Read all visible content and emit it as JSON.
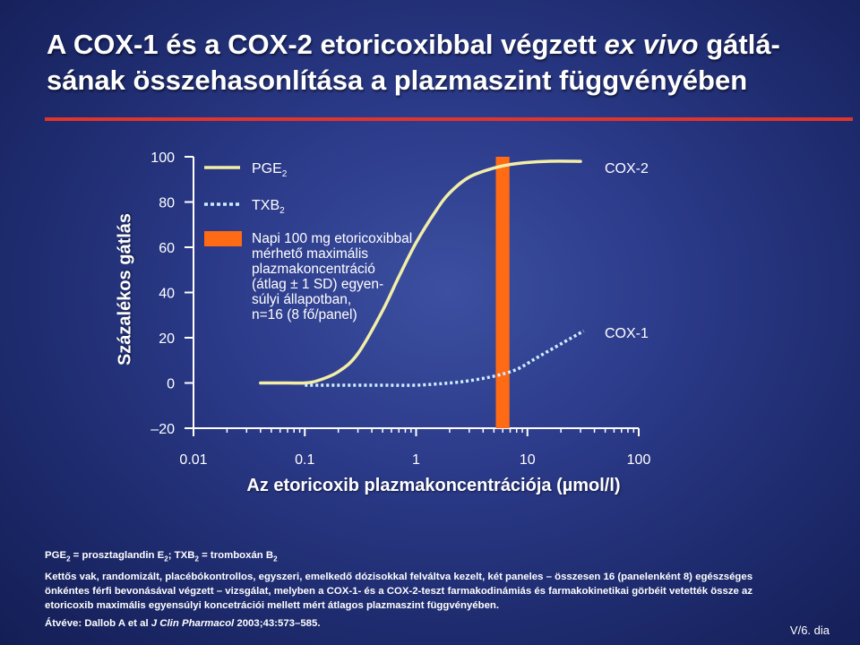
{
  "title": {
    "line1_a": "A COX-1 és a COX-2 etoricoxibbal végzett ",
    "line1_em": "ex vivo",
    "line1_b": " gátlá-",
    "line2": "sának összehasonlítása a plazmaszint függvényében"
  },
  "colors": {
    "pge2": "#f2eea8",
    "txb2": "#cdeeff",
    "band": "#ff6a14",
    "rule": "#e0342d"
  },
  "legend": {
    "pge2_main": "PGE",
    "pge2_sub": "2",
    "txb2_main": "TXB",
    "txb2_sub": "2",
    "band_lines": [
      "Napi 100 mg etoricoxibbal",
      "mérhető maximális",
      "plazmakoncentráció",
      "(átlag ± 1 SD) egyen-",
      "súlyi állapotban,",
      "n=16 (8 fő/panel)"
    ]
  },
  "chart_data": {
    "type": "line",
    "xlabel": "Az etoricoxib plazmakoncentrációja (µmol/l)",
    "ylabel": "Százalékos gátlás",
    "x_scale": "log",
    "xlim": [
      0.01,
      100
    ],
    "ylim": [
      -20,
      100
    ],
    "x_ticks": [
      "0.01",
      "0.1",
      "1",
      "10",
      "100"
    ],
    "y_ticks": [
      "100",
      "80",
      "60",
      "40",
      "20",
      "0",
      "–20"
    ],
    "band": {
      "x_range": [
        5.2,
        6.9
      ],
      "label": "Napi 100 mg etoricoxibbal mérhető maximális plazmakoncentráció"
    },
    "series": [
      {
        "name": "COX-2",
        "style": "solid",
        "x": [
          0.04,
          0.07,
          0.1,
          0.13,
          0.2,
          0.3,
          0.5,
          0.7,
          1.0,
          1.5,
          2.0,
          3.0,
          5.0,
          8.0,
          15,
          30
        ],
        "y": [
          0,
          0,
          0,
          1,
          5,
          13,
          32,
          47,
          62,
          76,
          84,
          91,
          95,
          97,
          98,
          98
        ]
      },
      {
        "name": "COX-1",
        "style": "dotted",
        "x": [
          0.1,
          0.2,
          0.5,
          1,
          2,
          3,
          5,
          8,
          12,
          18,
          25,
          32
        ],
        "y": [
          -1,
          -1,
          -1,
          -1,
          0,
          1,
          3,
          6,
          11,
          16,
          20,
          23
        ]
      }
    ],
    "curve_labels": [
      "COX-2",
      "COX-1"
    ]
  },
  "footer": {
    "line1": {
      "a": "PGE",
      "a_sub": "2",
      "b": " = prosztaglandin E",
      "b_sub": "2",
      "c": "; TXB",
      "c_sub": "2",
      "d": " = tromboxán B",
      "d_sub": "2"
    },
    "line2": "Kettős vak, randomizált, placébókontrollos, egyszeri, emelkedő dózisokkal felváltva kezelt, két paneles – összesen 16 (panelenként 8) egészséges",
    "line3": "önkéntes férfi bevonásával végzett – vizsgálat, melyben a COX-1- és a COX-2-teszt farmakodinámiás és farmakokinetikai görbéit vetették össze az",
    "line4": "etoricoxib maximális egyensúlyi koncetrációi mellett mért átlagos plazmaszint függvényében.",
    "line5": {
      "a": "Átvéve: Dallob A et al ",
      "journal": "J Clin Pharmacol",
      "b": " 2003;43:573–585."
    }
  },
  "slide_number": "V/6. dia"
}
